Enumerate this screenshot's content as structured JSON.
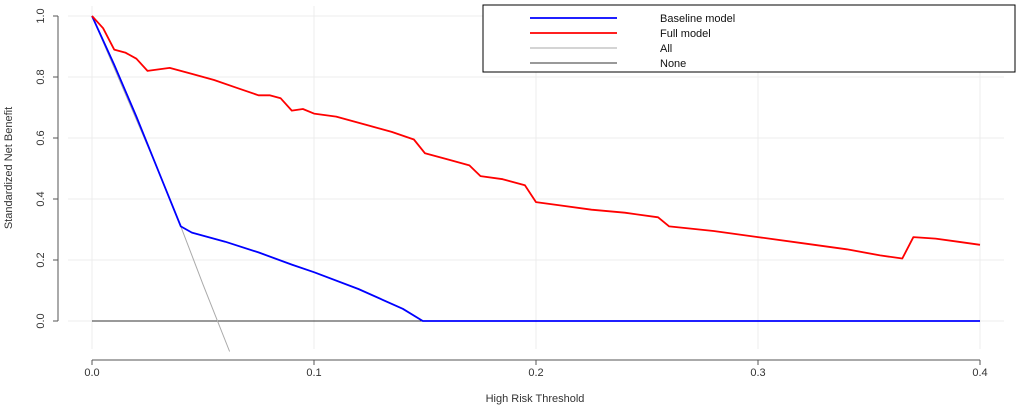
{
  "chart_data": {
    "type": "line",
    "xlabel": "High Risk Threshold",
    "ylabel": "Standardized Net Benefit",
    "xlim": [
      0,
      0.4
    ],
    "ylim": [
      -0.1,
      1.0
    ],
    "xticks": [
      0.0,
      0.1,
      0.2,
      0.3,
      0.4
    ],
    "xtick_labels": [
      "0.0",
      "0.1",
      "0.2",
      "0.3",
      "0.4"
    ],
    "yticks": [
      0.0,
      0.2,
      0.4,
      0.6,
      0.8,
      1.0
    ],
    "ytick_labels": [
      "0.0",
      "0.2",
      "0.4",
      "0.6",
      "0.8",
      "1.0"
    ],
    "grid": true,
    "legend_position": "top-right",
    "series": [
      {
        "name": "Baseline model",
        "color": "#0000ff",
        "points": [
          [
            0,
            1.0
          ],
          [
            0.01,
            0.84
          ],
          [
            0.02,
            0.67
          ],
          [
            0.03,
            0.49
          ],
          [
            0.04,
            0.31
          ],
          [
            0.045,
            0.29
          ],
          [
            0.06,
            0.26
          ],
          [
            0.075,
            0.225
          ],
          [
            0.09,
            0.185
          ],
          [
            0.1,
            0.16
          ],
          [
            0.12,
            0.105
          ],
          [
            0.14,
            0.04
          ],
          [
            0.149,
            0.0
          ],
          [
            0.2,
            0.0
          ],
          [
            0.3,
            0.0
          ],
          [
            0.4,
            0.0
          ]
        ]
      },
      {
        "name": "Full model",
        "color": "#ff0000",
        "points": [
          [
            0,
            1.0
          ],
          [
            0.005,
            0.96
          ],
          [
            0.01,
            0.89
          ],
          [
            0.015,
            0.88
          ],
          [
            0.02,
            0.86
          ],
          [
            0.025,
            0.82
          ],
          [
            0.035,
            0.83
          ],
          [
            0.045,
            0.81
          ],
          [
            0.055,
            0.79
          ],
          [
            0.065,
            0.765
          ],
          [
            0.075,
            0.74
          ],
          [
            0.08,
            0.74
          ],
          [
            0.085,
            0.73
          ],
          [
            0.09,
            0.69
          ],
          [
            0.095,
            0.695
          ],
          [
            0.1,
            0.68
          ],
          [
            0.11,
            0.67
          ],
          [
            0.125,
            0.64
          ],
          [
            0.135,
            0.62
          ],
          [
            0.145,
            0.595
          ],
          [
            0.15,
            0.55
          ],
          [
            0.16,
            0.53
          ],
          [
            0.17,
            0.51
          ],
          [
            0.175,
            0.475
          ],
          [
            0.185,
            0.465
          ],
          [
            0.195,
            0.445
          ],
          [
            0.2,
            0.39
          ],
          [
            0.21,
            0.38
          ],
          [
            0.225,
            0.365
          ],
          [
            0.24,
            0.355
          ],
          [
            0.255,
            0.34
          ],
          [
            0.26,
            0.31
          ],
          [
            0.28,
            0.295
          ],
          [
            0.3,
            0.275
          ],
          [
            0.32,
            0.255
          ],
          [
            0.34,
            0.235
          ],
          [
            0.355,
            0.215
          ],
          [
            0.365,
            0.205
          ],
          [
            0.37,
            0.275
          ],
          [
            0.38,
            0.27
          ],
          [
            0.39,
            0.26
          ],
          [
            0.4,
            0.25
          ]
        ]
      },
      {
        "name": "All",
        "color": "#aaaaaa",
        "points": [
          [
            0,
            1.0
          ],
          [
            0.01,
            0.83
          ],
          [
            0.02,
            0.66
          ],
          [
            0.03,
            0.49
          ],
          [
            0.04,
            0.31
          ],
          [
            0.05,
            0.12
          ],
          [
            0.062,
            -0.1
          ]
        ]
      },
      {
        "name": "None",
        "color": "#333333",
        "points": [
          [
            0,
            0.0
          ],
          [
            0.4,
            0.0
          ]
        ]
      }
    ],
    "legend": [
      "Baseline model",
      "Full model",
      "All",
      "None"
    ]
  }
}
